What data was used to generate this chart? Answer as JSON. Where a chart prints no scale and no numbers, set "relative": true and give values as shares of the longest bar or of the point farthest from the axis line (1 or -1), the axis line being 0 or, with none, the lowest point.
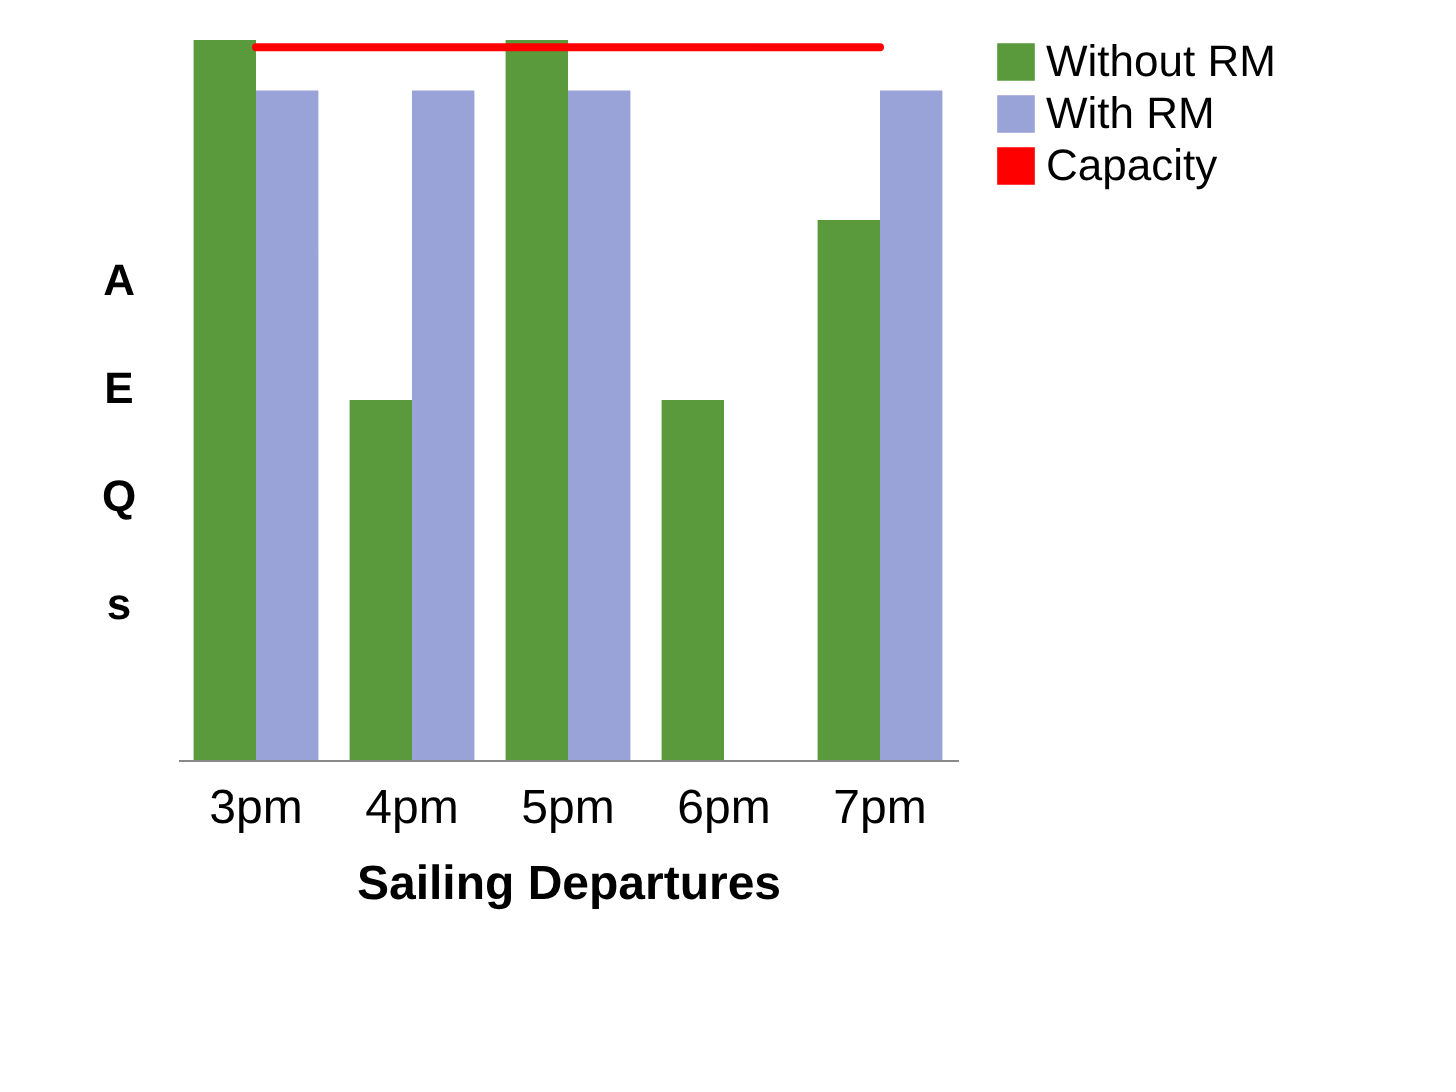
{
  "chart_data": {
    "type": "bar",
    "relative": true,
    "xlabel": "Sailing Departures",
    "ylabel": "AEQs",
    "categories": [
      "3pm",
      "4pm",
      "5pm",
      "6pm",
      "7pm"
    ],
    "series": [
      {
        "name": "Without RM",
        "color": "#5a9a3c",
        "values": [
          1,
          0.5,
          1,
          0.5,
          0.75
        ]
      },
      {
        "name": "With RM",
        "color": "#9aa3d8",
        "values": [
          0.93,
          0.93,
          0.93,
          0,
          0.93
        ]
      },
      {
        "name": "Capacity",
        "type": "line",
        "color": "#ff0000",
        "values": [
          0.99,
          0.99,
          0.99,
          0.99,
          0.99
        ]
      }
    ],
    "legend": "right",
    "grid": false
  }
}
